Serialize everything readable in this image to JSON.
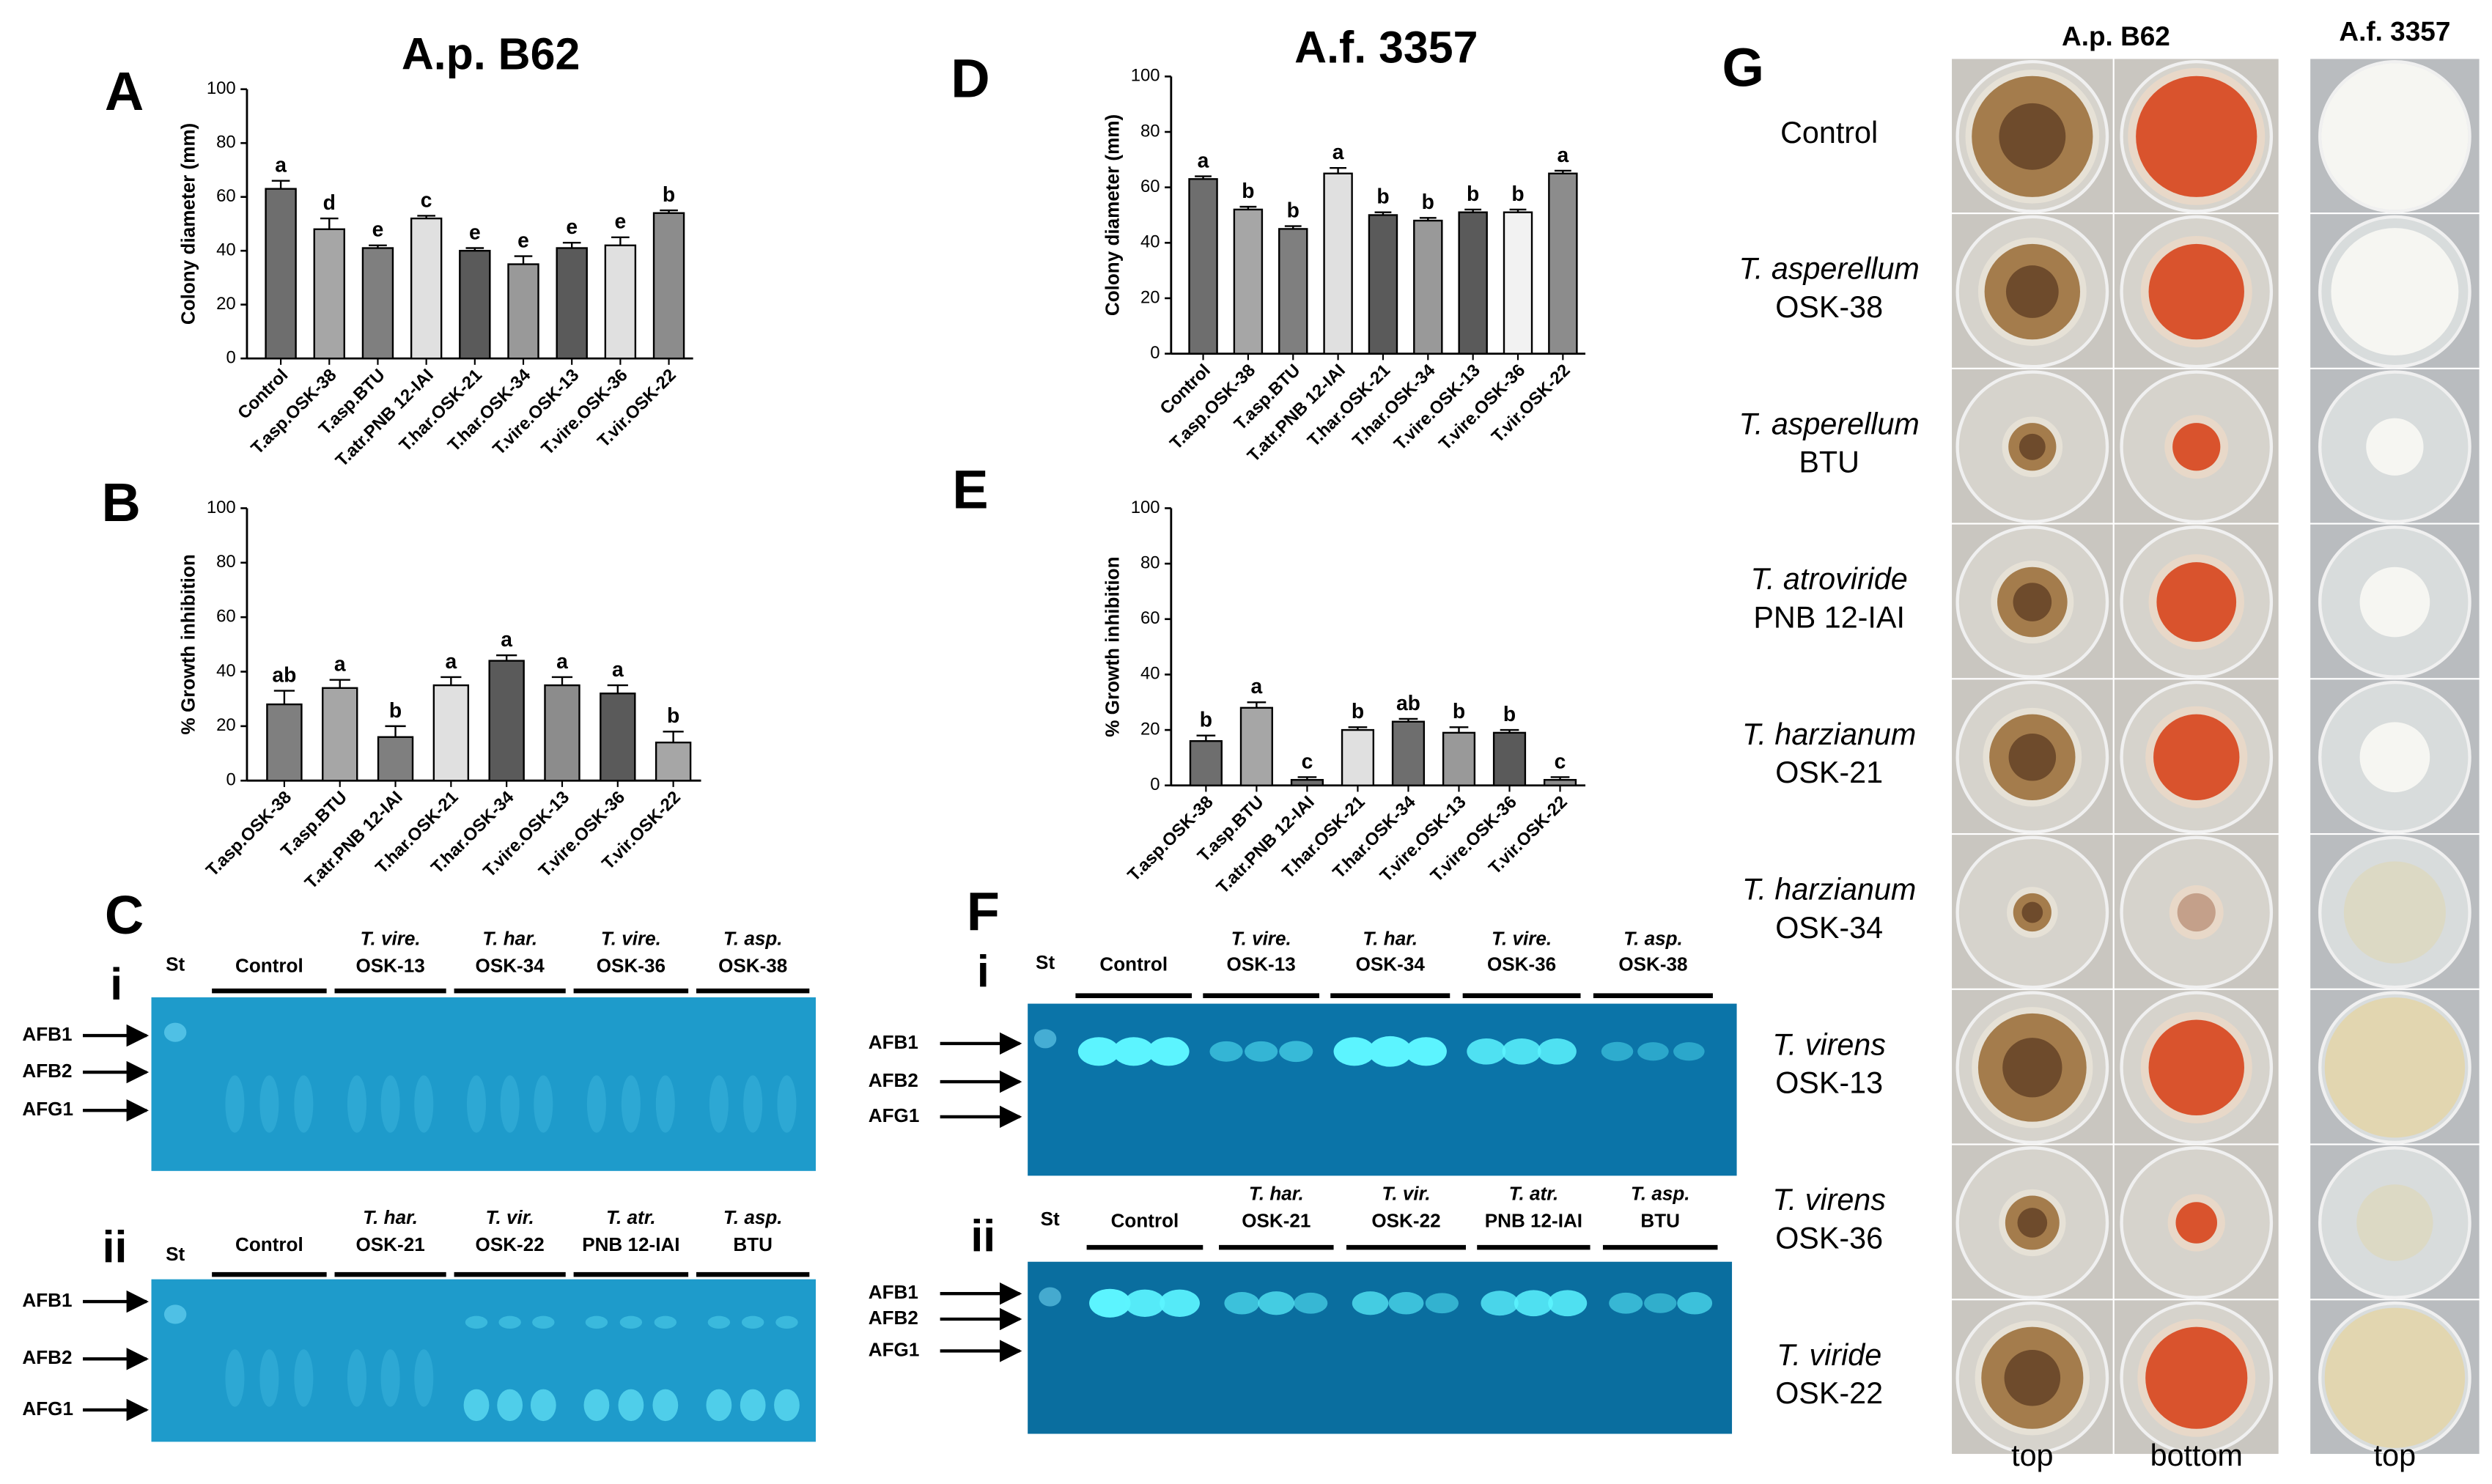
{
  "chart_data": [
    {
      "type": "bar",
      "label": "A",
      "title": "A.p. B62",
      "y_label": "Colony diameter (mm)",
      "categories": [
        "Control",
        "T.asp.OSK-38",
        "T.asp.BTU",
        "T.atr.PNB 12-IAI",
        "T.har.OSK-21",
        "T.har.OSK-34",
        "T.vire.OSK-13",
        "T.vire.OSK-36",
        "T.vir.OSK-22"
      ],
      "values": [
        63,
        48,
        41,
        52,
        40,
        35,
        41,
        42,
        54
      ],
      "errors": [
        3,
        4,
        1,
        1,
        1,
        3,
        2,
        3,
        1
      ],
      "annotations": [
        "a",
        "d",
        "e",
        "c",
        "e",
        "e",
        "e",
        "e",
        "b"
      ],
      "colors": [
        "#6e6e6e",
        "#a6a6a6",
        "#7f7f7f",
        "#e0e0e0",
        "#5a5a5a",
        "#999999",
        "#5a5a5a",
        "#e0e0e0",
        "#8c8c8c"
      ],
      "ylim": [
        0,
        100
      ],
      "yticks": [
        0,
        20,
        40,
        60,
        80,
        100
      ]
    },
    {
      "type": "bar",
      "label": "B",
      "y_label": "% Growth inhibition",
      "categories": [
        "T.asp.OSK-38",
        "T.asp.BTU",
        "T.atr.PNB 12-IAI",
        "T.har.OSK-21",
        "T.har.OSK-34",
        "T.vire.OSK-13",
        "T.vire.OSK-36",
        "T.vir.OSK-22"
      ],
      "values": [
        28,
        34,
        16,
        35,
        44,
        35,
        32,
        14
      ],
      "errors": [
        5,
        3,
        4,
        3,
        2,
        3,
        3,
        4
      ],
      "annotations": [
        "ab",
        "a",
        "b",
        "a",
        "a",
        "a",
        "a",
        "b"
      ],
      "colors": [
        "#7f7f7f",
        "#a6a6a6",
        "#7f7f7f",
        "#e0e0e0",
        "#5a5a5a",
        "#8c8c8c",
        "#5a5a5a",
        "#a6a6a6"
      ],
      "ylim": [
        0,
        100
      ],
      "yticks": [
        0,
        20,
        40,
        60,
        80,
        100
      ]
    },
    {
      "type": "bar",
      "label": "D",
      "title": "A.f. 3357",
      "y_label": "Colony diameter (mm)",
      "categories": [
        "Control",
        "T.asp.OSK-38",
        "T.asp.BTU",
        "T.atr.PNB 12-IAI",
        "T.har.OSK-21",
        "T.har.OSK-34",
        "T.vire.OSK-13",
        "T.vire.OSK-36",
        "T.vir.OSK-22"
      ],
      "values": [
        63,
        52,
        45,
        65,
        50,
        48,
        51,
        51,
        65
      ],
      "errors": [
        1,
        1,
        1,
        2,
        1,
        1,
        1,
        1,
        1
      ],
      "annotations": [
        "a",
        "b",
        "b",
        "a",
        "b",
        "b",
        "b",
        "b",
        "a"
      ],
      "colors": [
        "#6e6e6e",
        "#a6a6a6",
        "#7f7f7f",
        "#e0e0e0",
        "#5a5a5a",
        "#999999",
        "#5a5a5a",
        "#f2f2f2",
        "#8c8c8c"
      ],
      "ylim": [
        0,
        100
      ],
      "yticks": [
        0,
        20,
        40,
        60,
        80,
        100
      ]
    },
    {
      "type": "bar",
      "label": "E",
      "y_label": "% Growth inhibition",
      "categories": [
        "T.asp.OSK-38",
        "T.asp.BTU",
        "T.atr.PNB 12-IAI",
        "T.har.OSK-21",
        "T.har.OSK-34",
        "T.vire.OSK-13",
        "T.vire.OSK-36",
        "T.vir.OSK-22"
      ],
      "values": [
        16,
        28,
        2,
        20,
        23,
        19,
        19,
        2
      ],
      "errors": [
        2,
        2,
        1,
        1,
        1,
        2,
        1,
        1
      ],
      "annotations": [
        "b",
        "a",
        "c",
        "b",
        "ab",
        "b",
        "b",
        "c"
      ],
      "colors": [
        "#6e6e6e",
        "#a6a6a6",
        "#6e6e6e",
        "#e0e0e0",
        "#6e6e6e",
        "#999999",
        "#5a5a5a",
        "#8c8c8c"
      ],
      "ylim": [
        0,
        100
      ],
      "yticks": [
        0,
        20,
        40,
        60,
        80,
        100
      ]
    }
  ],
  "gels": [
    {
      "label": "C",
      "blots": [
        {
          "label": "i",
          "standard": "St",
          "markers": [
            "AFB1",
            "AFB2",
            "AFG1"
          ],
          "groups": [
            {
              "lines": [
                "Control"
              ]
            },
            {
              "lines": [
                "T. vire.",
                "OSK-13"
              ]
            },
            {
              "lines": [
                "T. har.",
                "OSK-34"
              ]
            },
            {
              "lines": [
                "T. vire.",
                "OSK-36"
              ]
            },
            {
              "lines": [
                "T. asp.",
                "OSK-38"
              ]
            }
          ]
        },
        {
          "label": "ii",
          "standard": "St",
          "markers": [
            "AFB1",
            "AFB2",
            "AFG1"
          ],
          "groups": [
            {
              "lines": [
                "Control"
              ]
            },
            {
              "lines": [
                "T. har.",
                "OSK-21"
              ]
            },
            {
              "lines": [
                "T. vir.",
                "OSK-22"
              ]
            },
            {
              "lines": [
                "T. atr.",
                "PNB 12-IAI"
              ]
            },
            {
              "lines": [
                "T. asp.",
                "BTU"
              ]
            }
          ]
        }
      ]
    },
    {
      "label": "F",
      "blots": [
        {
          "label": "i",
          "standard": "St",
          "markers": [
            "AFB1",
            "AFB2",
            "AFG1"
          ],
          "groups": [
            {
              "lines": [
                "Control"
              ]
            },
            {
              "lines": [
                "T. vire.",
                "OSK-13"
              ]
            },
            {
              "lines": [
                "T. har.",
                "OSK-34"
              ]
            },
            {
              "lines": [
                "T. vire.",
                "OSK-36"
              ]
            },
            {
              "lines": [
                "T. asp.",
                "OSK-38"
              ]
            }
          ]
        },
        {
          "label": "ii",
          "standard": "St",
          "markers": [
            "AFB1",
            "AFB2",
            "AFG1"
          ],
          "groups": [
            {
              "lines": [
                "Control"
              ]
            },
            {
              "lines": [
                "T. har.",
                "OSK-21"
              ]
            },
            {
              "lines": [
                "T. vir.",
                "OSK-22"
              ]
            },
            {
              "lines": [
                "T. atr.",
                "PNB 12-IAI"
              ]
            },
            {
              "lines": [
                "T. asp.",
                "BTU"
              ]
            }
          ]
        }
      ]
    }
  ],
  "plates": {
    "label": "G",
    "headers": [
      "A.p. B62",
      "A.f. 3357"
    ],
    "rows": [
      {
        "lines": [
          "Control"
        ]
      },
      {
        "lines": [
          "T. asperellum",
          "OSK-38"
        ]
      },
      {
        "lines": [
          "T. asperellum",
          "BTU"
        ]
      },
      {
        "lines": [
          "T. atroviride",
          "PNB 12-IAI"
        ]
      },
      {
        "lines": [
          "T. harzianum",
          "OSK-21"
        ]
      },
      {
        "lines": [
          "T. harzianum",
          "OSK-34"
        ]
      },
      {
        "lines": [
          "T. virens",
          "OSK-13"
        ]
      },
      {
        "lines": [
          "T. virens",
          "OSK-36"
        ]
      },
      {
        "lines": [
          "T. viride",
          "OSK-22"
        ]
      }
    ],
    "footers": [
      "top",
      "bottom",
      "top"
    ]
  }
}
